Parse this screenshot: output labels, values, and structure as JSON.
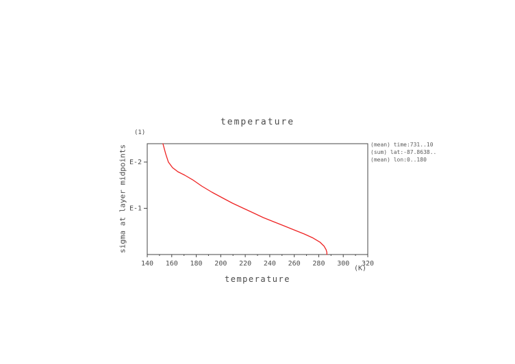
{
  "chart_data": {
    "type": "line",
    "title": "temperature",
    "xlabel": "temperature",
    "x_unit": "(K)",
    "ylabel": "sigma at layer midpoints",
    "y_unit": "(1)",
    "xlim": [
      140,
      320
    ],
    "x_ticks": [
      140,
      160,
      180,
      200,
      220,
      240,
      260,
      280,
      300,
      320
    ],
    "x_minor_step": 10,
    "y_scale": "log",
    "ylim_top_to_bottom": [
      0.004,
      1.0
    ],
    "y_ticks": [
      {
        "value": 0.01,
        "label": "E-2"
      },
      {
        "value": 0.1,
        "label": "E-1"
      }
    ],
    "grid": false,
    "legend": "none",
    "series": [
      {
        "name": "temperature profile",
        "color": "#ee2222",
        "points_temperature_sigma": [
          [
            152.8,
            0.004
          ],
          [
            155.1,
            0.0067
          ],
          [
            157.3,
            0.01
          ],
          [
            160.6,
            0.0132
          ],
          [
            165.0,
            0.0162
          ],
          [
            170.6,
            0.0192
          ],
          [
            177.2,
            0.0243
          ],
          [
            184.5,
            0.0331
          ],
          [
            192.9,
            0.045
          ],
          [
            201.2,
            0.059
          ],
          [
            209.6,
            0.0776
          ],
          [
            218.0,
            0.0984
          ],
          [
            226.4,
            0.125
          ],
          [
            234.7,
            0.159
          ],
          [
            243.1,
            0.195
          ],
          [
            251.5,
            0.239
          ],
          [
            259.8,
            0.293
          ],
          [
            268.2,
            0.36
          ],
          [
            275.4,
            0.44
          ],
          [
            281.0,
            0.54
          ],
          [
            284.4,
            0.663
          ],
          [
            286.0,
            0.787
          ],
          [
            286.6,
            0.9
          ],
          [
            286.6,
            1.0
          ]
        ]
      }
    ],
    "annotations": [
      "(mean) time:731..10",
      "(sum) lat:-87.8638..",
      "(mean) lon:0..180"
    ]
  }
}
